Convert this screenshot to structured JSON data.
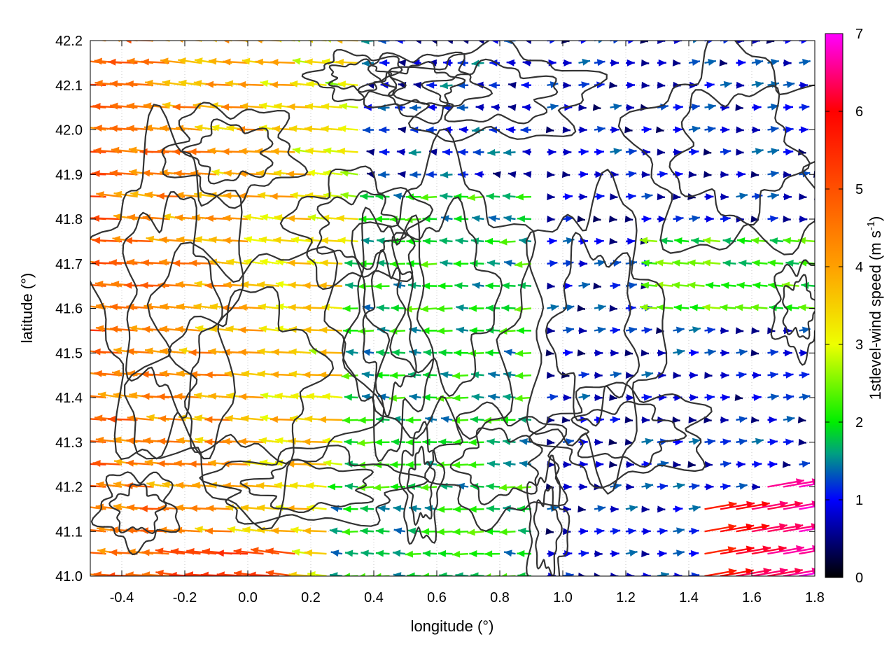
{
  "chart_data": {
    "type": "vector-field",
    "xlabel": "longitude (°)",
    "ylabel": "latitude (°)",
    "xlim": [
      -0.5,
      1.8
    ],
    "ylim": [
      41.0,
      42.2
    ],
    "x_ticks": [
      "-0.4",
      "-0.2",
      "0.0",
      "0.2",
      "0.4",
      "0.6",
      "0.8",
      "1.0",
      "1.2",
      "1.4",
      "1.6",
      "1.8"
    ],
    "x_tick_values": [
      -0.4,
      -0.2,
      0.0,
      0.2,
      0.4,
      0.6,
      0.8,
      1.0,
      1.2,
      1.4,
      1.6,
      1.8
    ],
    "y_ticks": [
      "41.0",
      "41.1",
      "41.2",
      "41.3",
      "41.4",
      "41.5",
      "41.6",
      "41.7",
      "41.8",
      "41.9",
      "42.0",
      "42.1",
      "42.2"
    ],
    "y_tick_values": [
      41.0,
      41.1,
      41.2,
      41.3,
      41.4,
      41.5,
      41.6,
      41.7,
      41.8,
      41.9,
      42.0,
      42.1,
      42.2
    ],
    "grid": true,
    "colorbar": {
      "label": "1stlevel-wind speed (m s-1)",
      "label_main": "1stlevel-wind speed (m s",
      "label_sup": "-1",
      "label_end": ")",
      "range": [
        0,
        7
      ],
      "ticks": [
        "0",
        "1",
        "2",
        "3",
        "4",
        "5",
        "6",
        "7"
      ],
      "tick_values": [
        0,
        1,
        2,
        3,
        4,
        5,
        6,
        7
      ],
      "colormap": [
        {
          "v": 0,
          "color": "#000000"
        },
        {
          "v": 1,
          "color": "#0000ff"
        },
        {
          "v": 1.6,
          "color": "#00a080"
        },
        {
          "v": 2,
          "color": "#00ee00"
        },
        {
          "v": 3,
          "color": "#eeff00"
        },
        {
          "v": 4,
          "color": "#ffa000"
        },
        {
          "v": 5,
          "color": "#ff5000"
        },
        {
          "v": 6,
          "color": "#ff0000"
        },
        {
          "v": 7,
          "color": "#ff00ff"
        }
      ]
    },
    "grid_spacing_deg": {
      "lon": 0.05,
      "lat": 0.05
    },
    "wind_regimes": [
      {
        "region": "west (lon < 0.3)",
        "direction": "westward",
        "speed_range": [
          3.0,
          5.2
        ]
      },
      {
        "region": "central (0.3–0.9)",
        "direction": "westward",
        "speed_range": [
          1.5,
          2.5
        ]
      },
      {
        "region": "east (lon > 0.95)",
        "direction": "eastward",
        "speed_range": [
          0.3,
          1.5
        ]
      },
      {
        "region": "southeast corner (lon > 1.45, lat < 41.15)",
        "direction": "east-north-east",
        "speed_range": [
          5.5,
          7.0
        ]
      }
    ],
    "terrain_contours": "topographic contour lines overlay (black)"
  }
}
